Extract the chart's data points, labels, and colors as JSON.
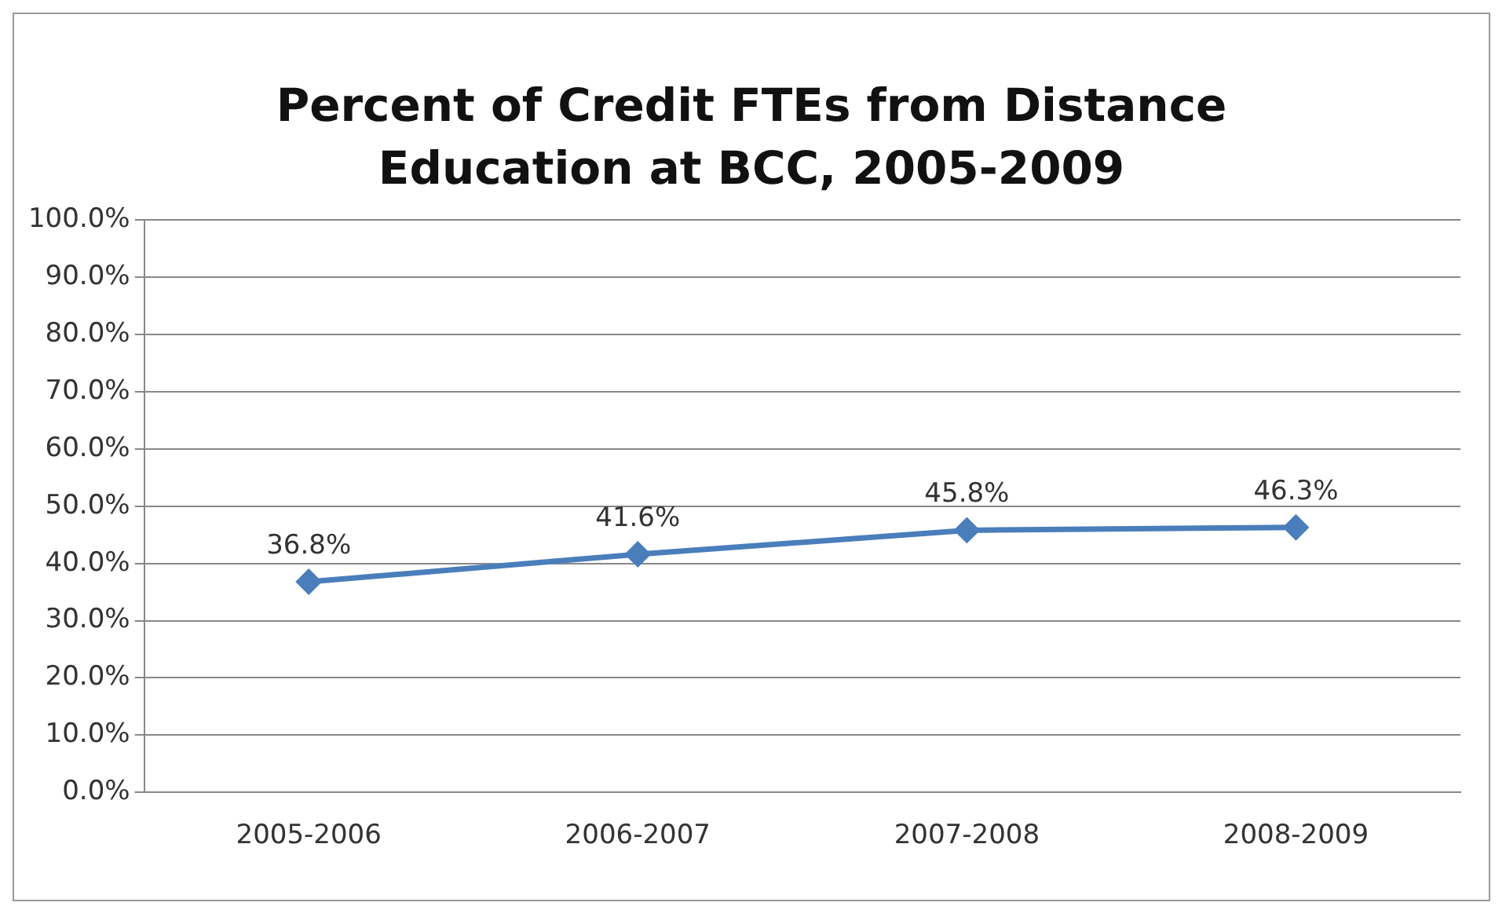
{
  "chart_data": {
    "type": "line",
    "title": "Percent of Credit FTEs from Distance Education at BCC, 2005-2009",
    "categories": [
      "2005-2006",
      "2006-2007",
      "2007-2008",
      "2008-2009"
    ],
    "series": [
      {
        "color": "#4a7ebb",
        "values": [
          36.8,
          41.6,
          45.8,
          46.3
        ],
        "value_labels": [
          "36.8%",
          "41.6%",
          "45.8%",
          "46.3%"
        ]
      }
    ],
    "ylim": [
      0,
      100
    ],
    "yticks": [
      {
        "value": 0,
        "label": "0.0%"
      },
      {
        "value": 10,
        "label": "10.0%"
      },
      {
        "value": 20,
        "label": "20.0%"
      },
      {
        "value": 30,
        "label": "30.0%"
      },
      {
        "value": 40,
        "label": "40.0%"
      },
      {
        "value": 50,
        "label": "50.0%"
      },
      {
        "value": 60,
        "label": "60.0%"
      },
      {
        "value": 70,
        "label": "70.0%"
      },
      {
        "value": 80,
        "label": "80.0%"
      },
      {
        "value": 90,
        "label": "90.0%"
      },
      {
        "value": 100,
        "label": "100.0%"
      }
    ],
    "grid": "y",
    "legend": false,
    "marker": "diamond",
    "line_style": "solid"
  }
}
